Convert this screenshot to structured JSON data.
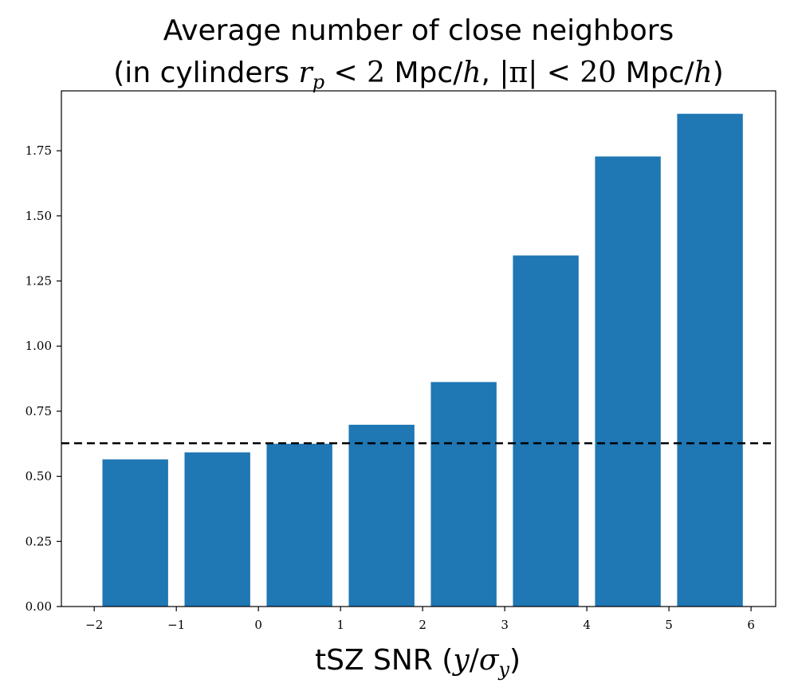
{
  "chart_data": {
    "type": "bar",
    "title_line1": "Average number of close neighbors",
    "title_line2": {
      "open": "(in cylinders ",
      "rp_var": "r",
      "rp_sub": "p",
      "lt1": " < 2 ",
      "unit1": "Mpc/",
      "h1": "h",
      "comma": ", ",
      "abs": "|π|",
      "lt2": " < 20 ",
      "unit2": "Mpc/",
      "h2": "h",
      "close": ")"
    },
    "xlabel": {
      "text": "tSZ SNR (",
      "y": "y",
      "slash": "/",
      "sigma": "σ",
      "sub": "y",
      "close": ")"
    },
    "xlim": [
      -2.4,
      6.3
    ],
    "ylim": [
      0,
      1.98
    ],
    "xticks": [
      -2,
      -1,
      0,
      1,
      2,
      3,
      4,
      5,
      6
    ],
    "xtick_labels": [
      "−2",
      "−1",
      "0",
      "1",
      "2",
      "3",
      "4",
      "5",
      "6"
    ],
    "yticks": [
      0,
      0.25,
      0.5,
      0.75,
      1.0,
      1.25,
      1.5,
      1.75
    ],
    "ytick_labels": [
      "0.00",
      "0.25",
      "0.50",
      "0.75",
      "1.00",
      "1.25",
      "1.50",
      "1.75"
    ],
    "bar_width": 0.8,
    "x": [
      -1.5,
      -0.5,
      0.5,
      1.5,
      2.5,
      3.5,
      4.5,
      5.5
    ],
    "values": [
      0.565,
      0.592,
      0.625,
      0.698,
      0.862,
      1.348,
      1.728,
      1.892
    ],
    "reference_line": 0.627,
    "bar_color": "#1f77b4",
    "reference_line_color": "#000000",
    "grid": false
  }
}
